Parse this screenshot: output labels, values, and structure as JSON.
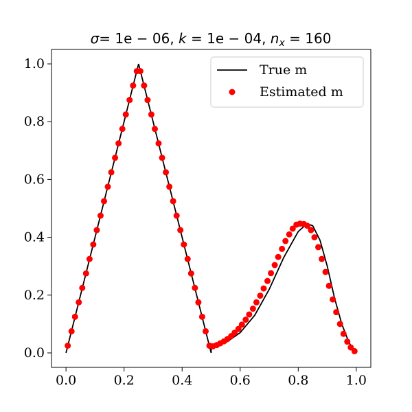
{
  "chart_data": {
    "type": "line",
    "title_parts": {
      "sigma_symbol": "σ",
      "sigma_value": "= 1e − 06, ",
      "k_symbol": "k",
      "k_value": " = 1e − 04, ",
      "n_symbol": "n",
      "n_subscript": "x",
      "n_value": " = 160"
    },
    "xlim": [
      -0.05,
      1.05
    ],
    "ylim": [
      -0.05,
      1.05
    ],
    "x_ticks": [
      {
        "value": 0.0,
        "label": "0.0"
      },
      {
        "value": 0.2,
        "label": "0.2"
      },
      {
        "value": 0.4,
        "label": "0.4"
      },
      {
        "value": 0.6,
        "label": "0.6"
      },
      {
        "value": 0.8,
        "label": "0.8"
      },
      {
        "value": 1.0,
        "label": "1.0"
      }
    ],
    "y_ticks": [
      {
        "value": 0.0,
        "label": "0.0"
      },
      {
        "value": 0.2,
        "label": "0.2"
      },
      {
        "value": 0.4,
        "label": "0.4"
      },
      {
        "value": 0.6,
        "label": "0.6"
      },
      {
        "value": 0.8,
        "label": "0.8"
      },
      {
        "value": 1.0,
        "label": "1.0"
      }
    ],
    "legend_position": "top-right",
    "series": [
      {
        "name": "True m",
        "style": "line",
        "color": "#000000",
        "x": [
          0.0,
          0.25,
          0.5,
          0.5,
          0.55,
          0.6,
          0.65,
          0.7,
          0.75,
          0.8,
          0.83,
          0.85,
          0.875,
          0.9,
          0.925,
          0.95,
          0.975,
          1.0
        ],
        "y": [
          0.0,
          1.0,
          0.0,
          0.02,
          0.035,
          0.07,
          0.13,
          0.22,
          0.33,
          0.42,
          0.447,
          0.44,
          0.39,
          0.3,
          0.19,
          0.1,
          0.035,
          0.0
        ]
      },
      {
        "name": "Estimated m",
        "style": "markers",
        "color": "#ff0000",
        "x": [
          0.006,
          0.019,
          0.031,
          0.044,
          0.056,
          0.069,
          0.081,
          0.094,
          0.106,
          0.119,
          0.131,
          0.144,
          0.156,
          0.169,
          0.181,
          0.194,
          0.206,
          0.219,
          0.231,
          0.244,
          0.256,
          0.269,
          0.281,
          0.294,
          0.306,
          0.319,
          0.331,
          0.344,
          0.356,
          0.369,
          0.381,
          0.394,
          0.406,
          0.419,
          0.431,
          0.444,
          0.456,
          0.469,
          0.481,
          0.494,
          0.506,
          0.519,
          0.531,
          0.544,
          0.556,
          0.569,
          0.581,
          0.594,
          0.606,
          0.619,
          0.631,
          0.644,
          0.656,
          0.669,
          0.681,
          0.694,
          0.706,
          0.719,
          0.731,
          0.744,
          0.756,
          0.769,
          0.781,
          0.794,
          0.806,
          0.819,
          0.831,
          0.844,
          0.856,
          0.869,
          0.881,
          0.894,
          0.906,
          0.919,
          0.931,
          0.944,
          0.956,
          0.969,
          0.981,
          0.994
        ],
        "y": [
          0.025,
          0.075,
          0.125,
          0.175,
          0.225,
          0.275,
          0.325,
          0.375,
          0.425,
          0.475,
          0.525,
          0.575,
          0.625,
          0.675,
          0.725,
          0.775,
          0.825,
          0.875,
          0.925,
          0.975,
          0.975,
          0.925,
          0.875,
          0.825,
          0.775,
          0.725,
          0.675,
          0.625,
          0.575,
          0.525,
          0.475,
          0.425,
          0.375,
          0.325,
          0.275,
          0.225,
          0.175,
          0.125,
          0.075,
          0.025,
          0.023,
          0.027,
          0.033,
          0.04,
          0.048,
          0.058,
          0.07,
          0.083,
          0.098,
          0.115,
          0.133,
          0.153,
          0.175,
          0.198,
          0.223,
          0.249,
          0.276,
          0.304,
          0.332,
          0.36,
          0.387,
          0.41,
          0.43,
          0.444,
          0.447,
          0.446,
          0.44,
          0.425,
          0.4,
          0.366,
          0.325,
          0.28,
          0.232,
          0.185,
          0.141,
          0.1,
          0.066,
          0.039,
          0.019,
          0.006
        ]
      }
    ]
  }
}
